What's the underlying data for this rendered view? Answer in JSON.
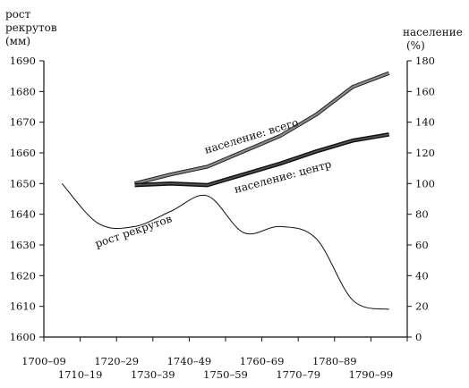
{
  "chart_data": {
    "type": "line",
    "title": "",
    "left_axis": {
      "label_lines": [
        "рост",
        "рекрутов",
        "(мм)"
      ],
      "ylim": [
        1600,
        1690
      ],
      "ticks": [
        1600,
        1610,
        1620,
        1630,
        1640,
        1650,
        1660,
        1670,
        1680,
        1690
      ]
    },
    "right_axis": {
      "label_lines": [
        "население",
        "(%)"
      ],
      "ylim": [
        0,
        180
      ],
      "ticks": [
        0,
        20,
        40,
        60,
        80,
        100,
        120,
        140,
        160,
        180
      ],
      "tick_labels": [
        "0",
        "20",
        "40",
        "60",
        "80",
        "100",
        "120",
        "140",
        "160",
        "180"
      ]
    },
    "categories": [
      "1700–09",
      "1710–19",
      "1720–29",
      "1730–39",
      "1740–49",
      "1750–59",
      "1760–69",
      "1770–79",
      "1780–89",
      "1790–99"
    ],
    "grid": false,
    "legend": "none",
    "series": [
      {
        "name": "рост рекрутов",
        "axis": "left",
        "style": "thin",
        "color": "#111111",
        "x": [
          1705,
          1715,
          1725,
          1735,
          1745,
          1755,
          1765,
          1775,
          1785,
          1795
        ],
        "values": [
          1650,
          1637,
          1636,
          1641,
          1646,
          1634,
          1636,
          1632,
          1612,
          1609
        ]
      },
      {
        "name": "население: всего",
        "axis": "right",
        "style": "double-gray",
        "color": "#8a8a8a",
        "x": [
          1725,
          1735,
          1745,
          1755,
          1765,
          1775,
          1785,
          1795
        ],
        "values": [
          100,
          106,
          111,
          121,
          131,
          145,
          163,
          172
        ]
      },
      {
        "name": "население: центр",
        "axis": "right",
        "style": "thick-dark",
        "color": "#222222",
        "x": [
          1725,
          1735,
          1745,
          1755,
          1765,
          1775,
          1785,
          1795
        ],
        "values": [
          99,
          100,
          99,
          106,
          113,
          121,
          128,
          132
        ]
      }
    ]
  }
}
